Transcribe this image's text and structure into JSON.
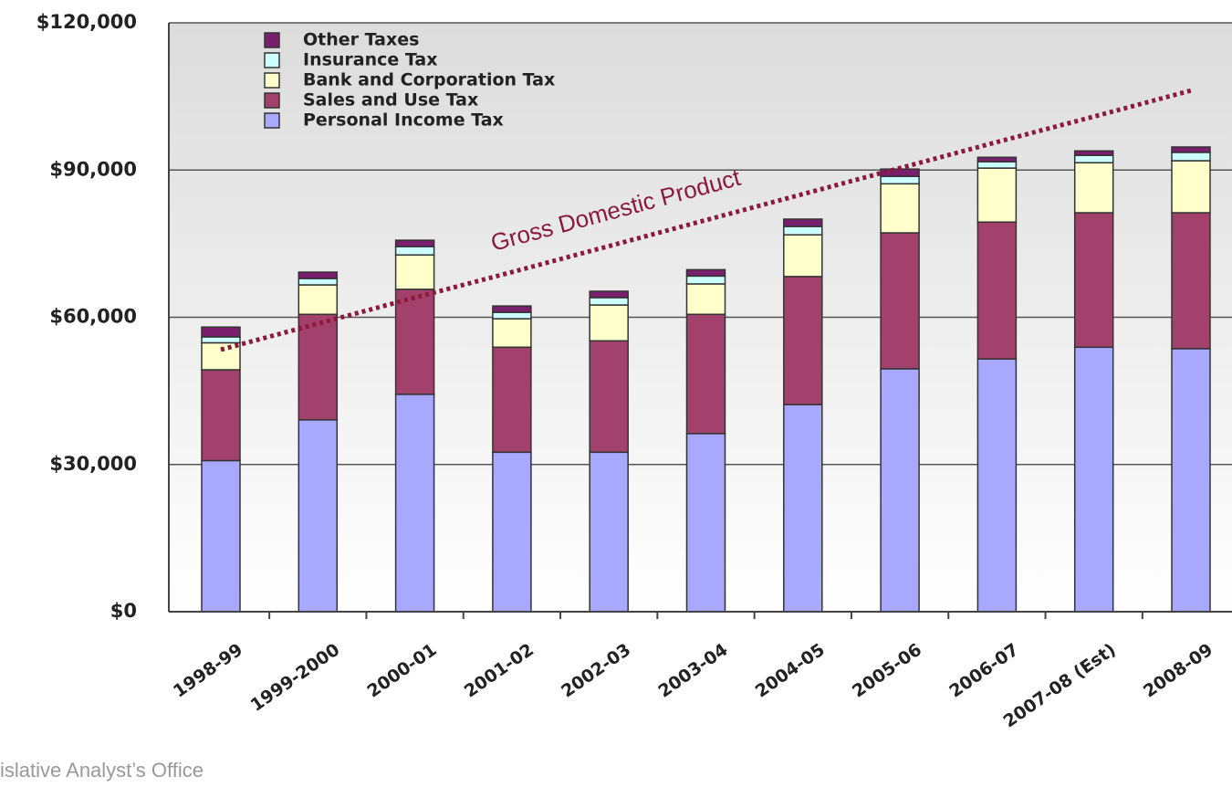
{
  "chart_data": {
    "type": "stacked_bar",
    "categories": [
      "1998-99",
      "1999-2000",
      "2000-01",
      "2001-02",
      "2002-03",
      "2003-04",
      "2004-05",
      "2005-06",
      "2006-07",
      "2007-08 (Est)",
      "2008-09"
    ],
    "series": [
      {
        "name": "Personal Income Tax",
        "color": "#a8a8ff",
        "values": [
          30800,
          39100,
          44300,
          32500,
          32500,
          36300,
          42200,
          49500,
          51500,
          53900,
          53600
        ]
      },
      {
        "name": "Sales and Use Tax",
        "color": "#a3416d",
        "values": [
          18500,
          21500,
          21400,
          21400,
          22700,
          24300,
          26100,
          27700,
          27900,
          27400,
          27700
        ]
      },
      {
        "name": "Bank and Corporation Tax",
        "color": "#ffffcc",
        "values": [
          5500,
          6000,
          7000,
          5800,
          7300,
          6200,
          8500,
          10000,
          11000,
          10200,
          10600
        ]
      },
      {
        "name": "Insurance Tax",
        "color": "#ccffff",
        "values": [
          1200,
          1300,
          1700,
          1300,
          1500,
          1600,
          1700,
          1500,
          1300,
          1500,
          1700
        ]
      },
      {
        "name": "Other Taxes",
        "color": "#7a1f6e",
        "values": [
          2000,
          1300,
          1300,
          1300,
          1300,
          1300,
          1500,
          1500,
          900,
          900,
          1100
        ]
      }
    ],
    "line": {
      "name": "Gross Domestic Product",
      "color": "#8b1a3a",
      "values": [
        53400,
        58700,
        64000,
        69200,
        74500,
        79800,
        85100,
        90400,
        95700,
        100900,
        106200
      ]
    },
    "ylim": [
      0,
      120000
    ],
    "yticks": [
      {
        "value": 0,
        "label": "$0"
      },
      {
        "value": 30000,
        "label": "$30,000"
      },
      {
        "value": 60000,
        "label": "$60,000"
      },
      {
        "value": 90000,
        "label": "$90,000"
      },
      {
        "value": 120000,
        "label": "$120,000"
      }
    ],
    "grid": true,
    "legend": "upper left"
  },
  "footer": "islative Analyst’s Office"
}
